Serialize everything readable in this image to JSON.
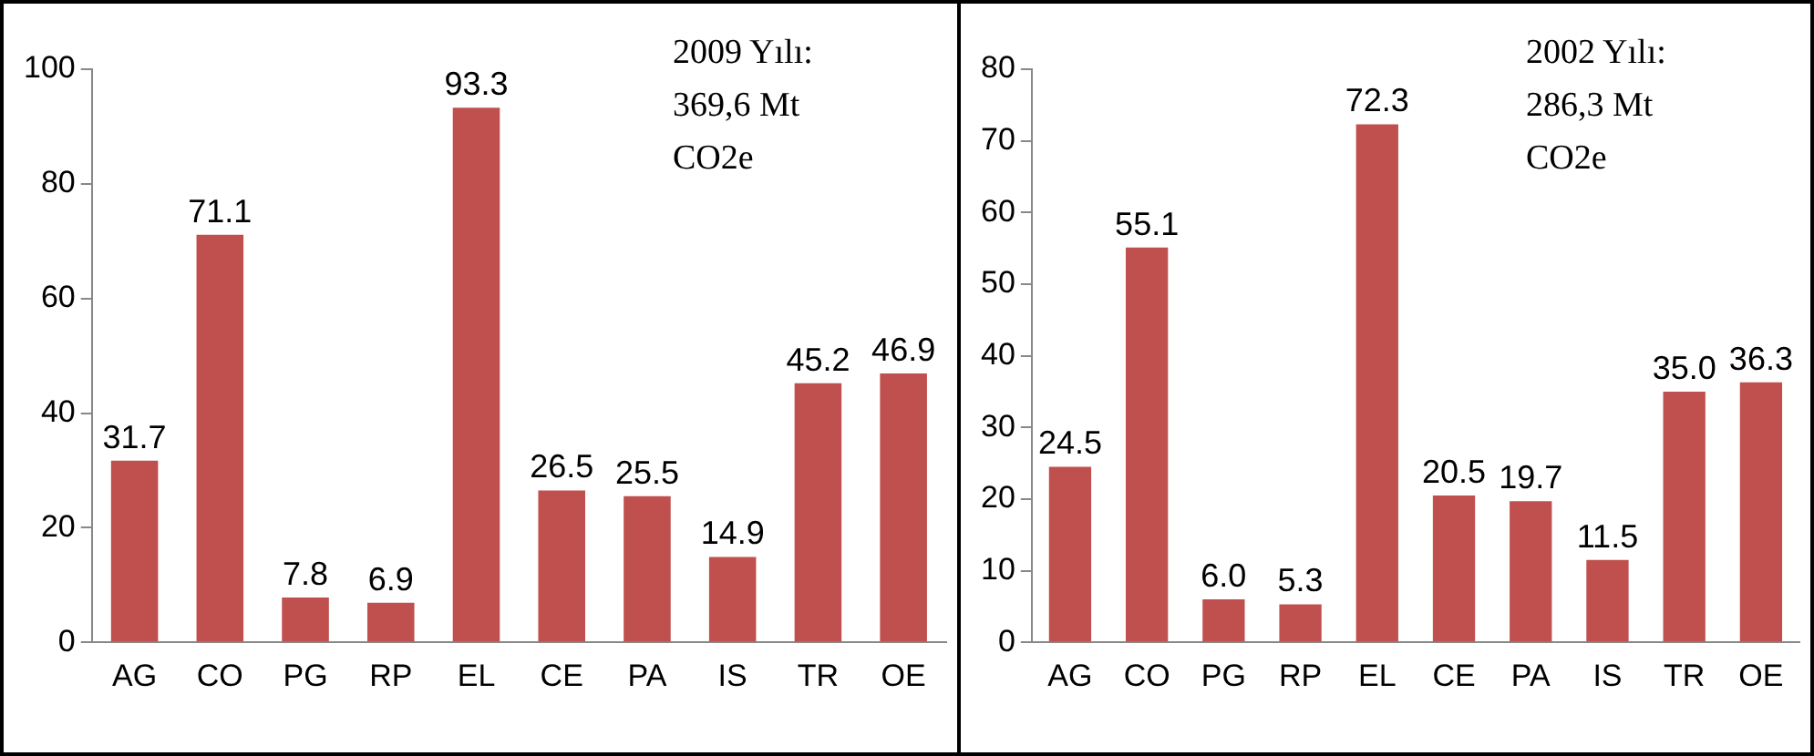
{
  "chart_data": [
    {
      "type": "bar",
      "categories": [
        "AG",
        "CO",
        "PG",
        "RP",
        "EL",
        "CE",
        "PA",
        "IS",
        "TR",
        "OE"
      ],
      "values": [
        31.7,
        71.1,
        7.8,
        6.9,
        93.3,
        26.5,
        25.5,
        14.9,
        45.2,
        46.9
      ],
      "value_labels": [
        "31.7",
        "71.1",
        "7.8",
        "6.9",
        "93.3",
        "26.5",
        "25.5",
        "14.9",
        "45.2",
        "46.9"
      ],
      "color": "#c0504d",
      "ylim": [
        0,
        100
      ],
      "yticks": [
        0,
        20,
        40,
        60,
        80,
        100
      ],
      "grid": false,
      "legend": false,
      "annotations": [
        "2009 Yılı:\n369,6 Mt\nCO2e"
      ]
    },
    {
      "type": "bar",
      "categories": [
        "AG",
        "CO",
        "PG",
        "RP",
        "EL",
        "CE",
        "PA",
        "IS",
        "TR",
        "OE"
      ],
      "values": [
        24.5,
        55.1,
        6.0,
        5.3,
        72.3,
        20.5,
        19.7,
        11.5,
        35.0,
        36.3
      ],
      "value_labels": [
        "24.5",
        "55.1",
        "6.0",
        "5.3",
        "72.3",
        "20.5",
        "19.7",
        "11.5",
        "35.0",
        "36.3"
      ],
      "color": "#c0504d",
      "ylim": [
        0,
        80
      ],
      "yticks": [
        0,
        10,
        20,
        30,
        40,
        50,
        60,
        70,
        80
      ],
      "grid": false,
      "legend": false,
      "annotations": [
        "2002 Yılı:\n286,3 Mt\nCO2e"
      ]
    }
  ]
}
